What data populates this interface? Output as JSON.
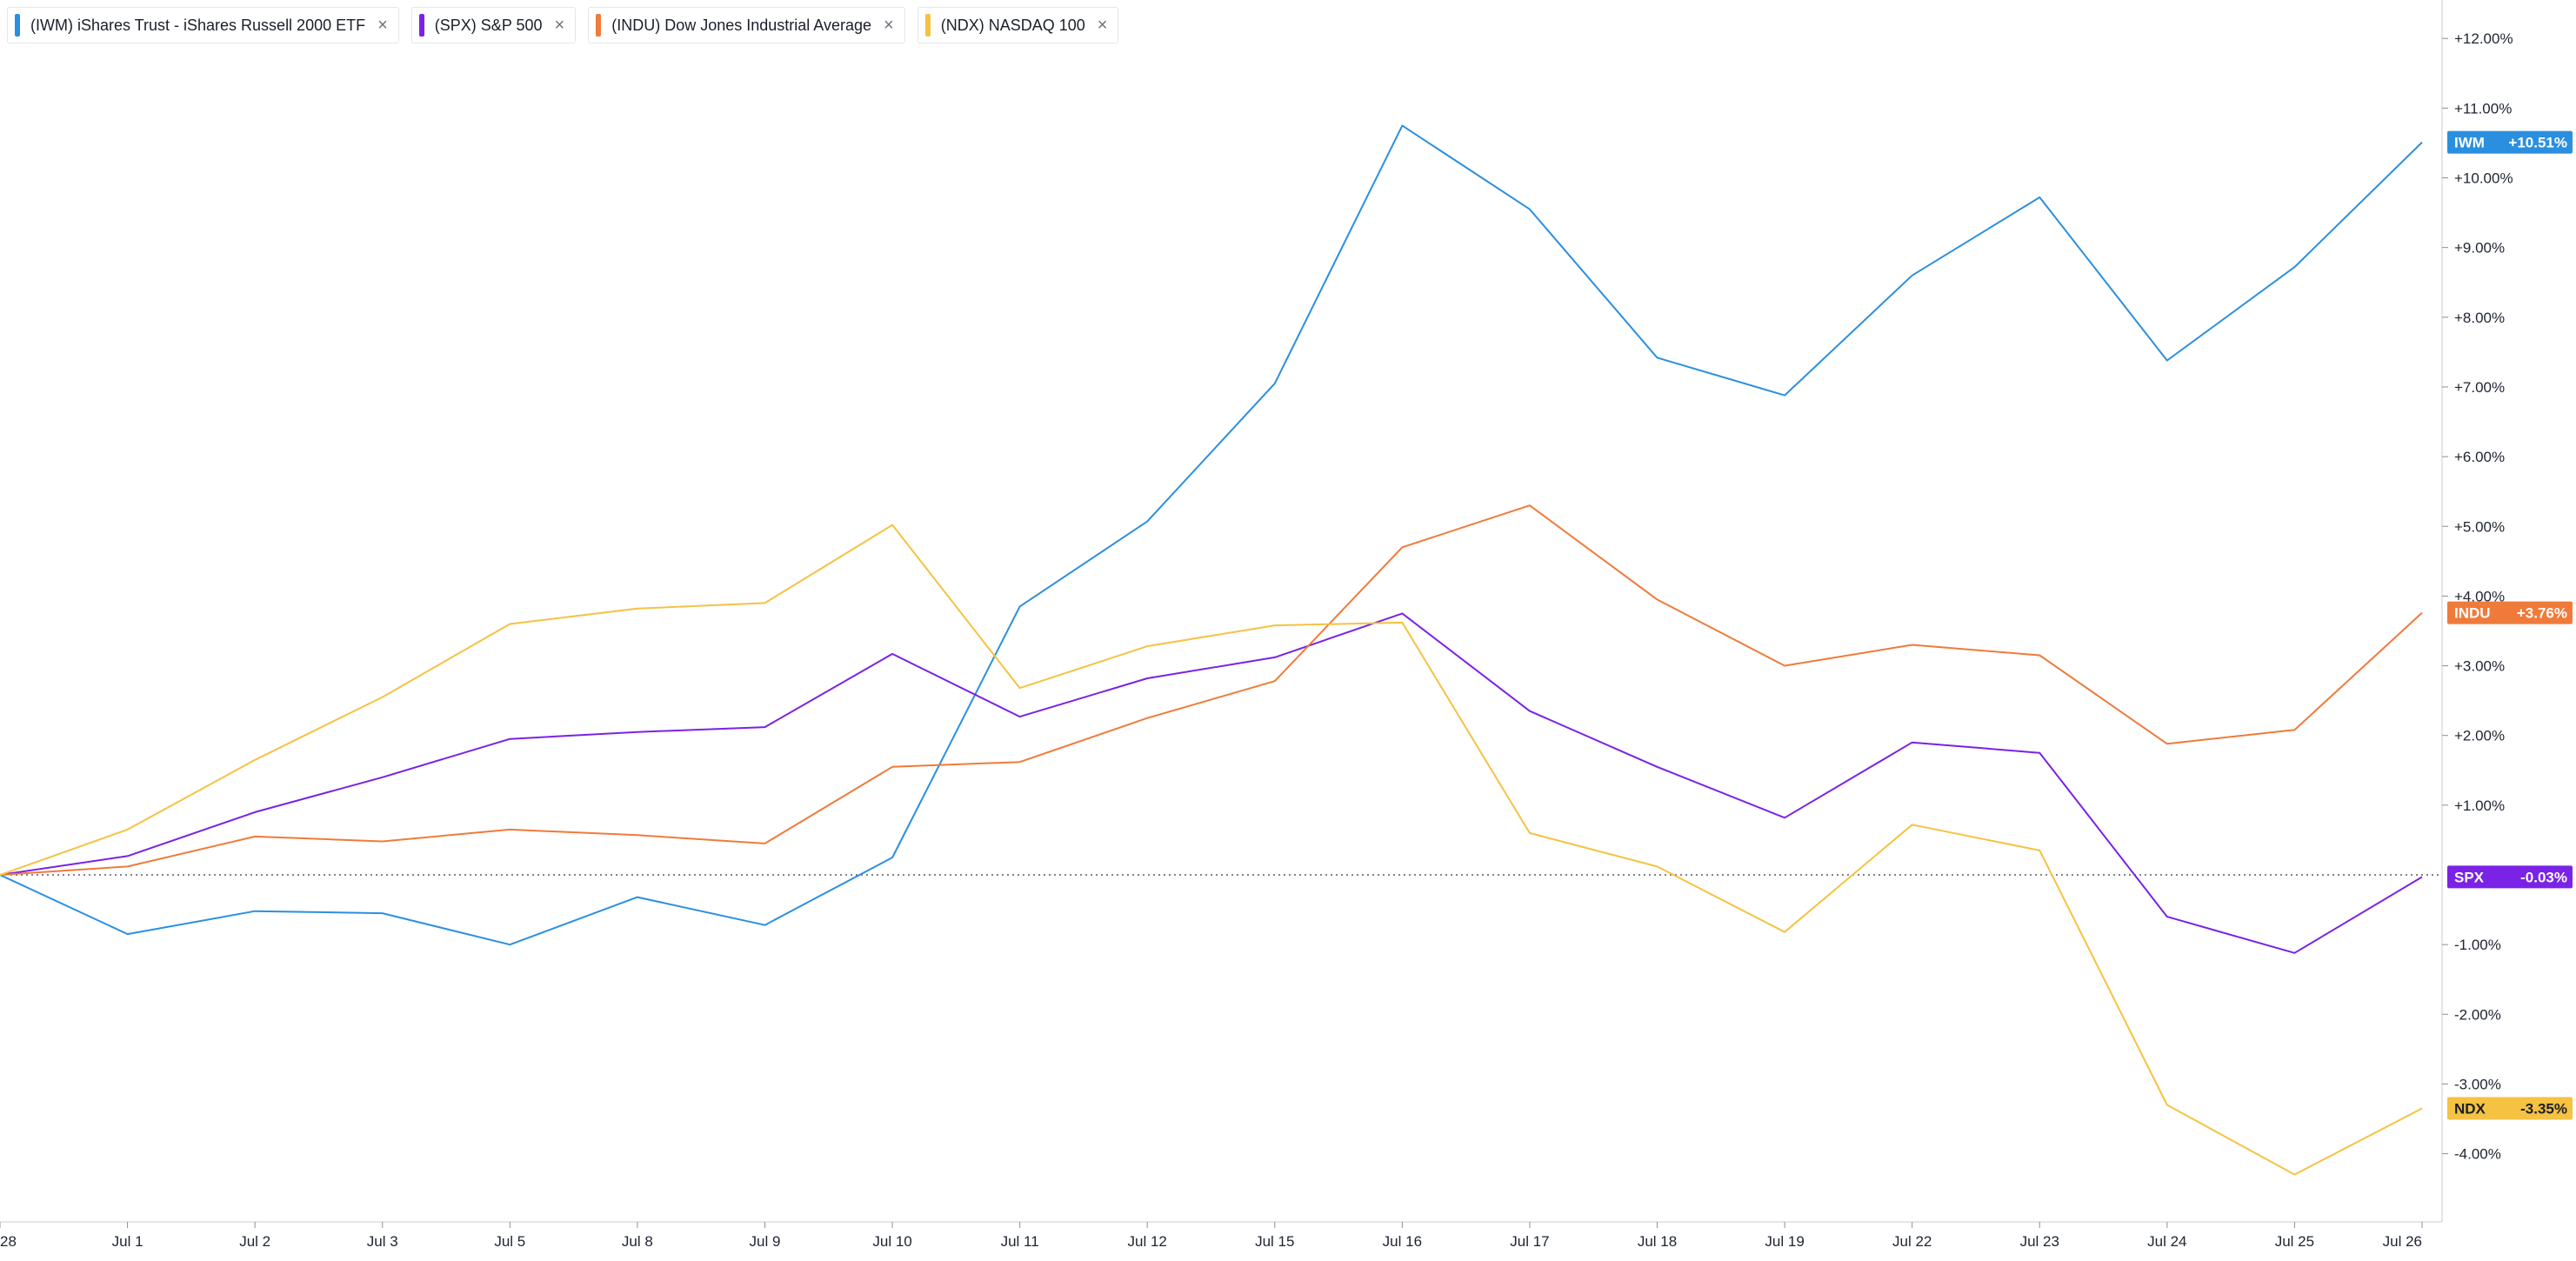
{
  "legend": [
    {
      "label": "(IWM) iShares Trust - iShares Russell 2000 ETF",
      "color": "#2b8fe0",
      "close": "×"
    },
    {
      "label": "(SPX) S&P 500",
      "color": "#7a22e6",
      "close": "×"
    },
    {
      "label": "(INDU) Dow Jones Industrial Average",
      "color": "#f07a3a",
      "close": "×"
    },
    {
      "label": "(NDX) NASDAQ 100",
      "color": "#f5c242",
      "close": "×"
    }
  ],
  "chart_data": {
    "type": "line",
    "x": [
      "28",
      "Jul 1",
      "Jul 2",
      "Jul 3",
      "Jul 5",
      "Jul 8",
      "Jul 9",
      "Jul 10",
      "Jul 11",
      "Jul 12",
      "Jul 15",
      "Jul 16",
      "Jul 17",
      "Jul 18",
      "Jul 19",
      "Jul 22",
      "Jul 23",
      "Jul 24",
      "Jul 25",
      "Jul 26"
    ],
    "ylim": [
      -5.0,
      12.5
    ],
    "y_ticks": [
      -4,
      -3,
      -2,
      -1,
      1,
      2,
      3,
      4,
      5,
      6,
      7,
      8,
      9,
      10,
      11,
      12
    ],
    "y_tick_labels": [
      "-4.00%",
      "-3.00%",
      "-2.00%",
      "-1.00%",
      "+1.00%",
      "+2.00%",
      "+3.00%",
      "+4.00%",
      "+5.00%",
      "+6.00%",
      "+7.00%",
      "+8.00%",
      "+9.00%",
      "+10.00%",
      "+11.00%",
      "+12.00%"
    ],
    "baseline": 0,
    "grid": false,
    "series": [
      {
        "name": "IWM",
        "color": "#2b8fe0",
        "last_label": "+10.51%",
        "values": [
          0.0,
          -0.85,
          -0.52,
          -0.55,
          -1.0,
          -0.32,
          -0.72,
          0.25,
          3.85,
          5.07,
          7.05,
          10.75,
          9.55,
          7.42,
          6.88,
          8.6,
          9.72,
          7.38,
          8.72,
          10.51
        ]
      },
      {
        "name": "SPX",
        "color": "#7a22e6",
        "last_label": "-0.03%",
        "values": [
          0.0,
          0.27,
          0.9,
          1.4,
          1.95,
          2.05,
          2.12,
          3.17,
          2.27,
          2.82,
          3.12,
          3.75,
          2.35,
          1.55,
          0.82,
          1.9,
          1.75,
          -0.6,
          -1.12,
          -0.03
        ]
      },
      {
        "name": "INDU",
        "color": "#f07a3a",
        "last_label": "+3.76%",
        "values": [
          0.0,
          0.12,
          0.55,
          0.48,
          0.65,
          0.57,
          0.45,
          1.55,
          1.62,
          2.25,
          2.78,
          4.7,
          5.3,
          3.95,
          3.0,
          3.3,
          3.15,
          1.88,
          2.08,
          3.76
        ]
      },
      {
        "name": "NDX",
        "color": "#f5c242",
        "last_label": "-3.35%",
        "values": [
          0.0,
          0.65,
          1.65,
          2.55,
          3.6,
          3.82,
          3.9,
          5.02,
          2.68,
          3.28,
          3.58,
          3.62,
          0.6,
          0.12,
          -0.82,
          0.72,
          0.35,
          -3.3,
          -4.3,
          -3.35
        ]
      }
    ]
  }
}
